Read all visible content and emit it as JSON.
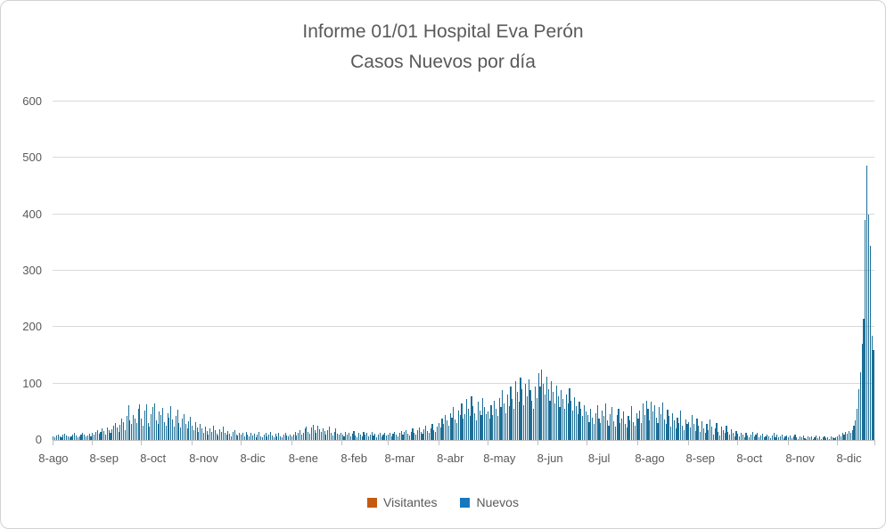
{
  "chart": {
    "title_line1": "Informe 01/01 Hospital Eva Perón",
    "title_line2": "Casos Nuevos por día",
    "legend": [
      {
        "label": "Visitantes",
        "color": "#c55a11"
      },
      {
        "label": "Nuevos",
        "color": "#1878be"
      }
    ],
    "colors": {
      "bar": "#1d6e96",
      "gridline": "#d9d9d9",
      "axis": "#bfbfbf",
      "text": "#595959",
      "frame_border": "#d2d2d2",
      "background": "#ffffff"
    }
  },
  "chart_data": {
    "type": "bar",
    "title": "Informe 01/01 Hospital Eva Perón — Casos Nuevos por día",
    "xlabel": "",
    "ylabel": "",
    "ylim": [
      0,
      600
    ],
    "yticks": [
      0,
      100,
      200,
      300,
      400,
      500,
      600
    ],
    "grid": true,
    "legend_position": "bottom",
    "x_unit": "day",
    "x_first_day": "8-ago (year 1)",
    "x_tick_labels": [
      "8-ago",
      "8-sep",
      "8-oct",
      "8-nov",
      "8-dic",
      "8-ene",
      "8-feb",
      "8-mar",
      "8-abr",
      "8-may",
      "8-jun",
      "8-jul",
      "8-ago",
      "8-sep",
      "8-oct",
      "8-nov",
      "8-dic"
    ],
    "x_tick_day_index": [
      0,
      31,
      61,
      92,
      122,
      153,
      184,
      212,
      243,
      273,
      304,
      334,
      365,
      396,
      426,
      457,
      487
    ],
    "month_start_day_index": [
      24,
      54,
      85,
      115,
      146,
      177,
      205,
      236,
      266,
      297,
      327,
      358,
      389,
      419,
      450,
      480
    ],
    "series": [
      {
        "name": "Visitantes",
        "color": "#c55a11",
        "values": []
      },
      {
        "name": "Nuevos",
        "color": "#1878be",
        "values": [
          6,
          4,
          8,
          10,
          7,
          5,
          9,
          11,
          8,
          6,
          4,
          7,
          9,
          12,
          8,
          5,
          7,
          10,
          13,
          9,
          6,
          8,
          11,
          7,
          12,
          9,
          15,
          18,
          11,
          14,
          20,
          16,
          10,
          22,
          17,
          13,
          19,
          25,
          30,
          22,
          15,
          27,
          38,
          32,
          18,
          42,
          62,
          35,
          28,
          45,
          38,
          30,
          55,
          63,
          38,
          25,
          52,
          63,
          30,
          24,
          46,
          58,
          65,
          35,
          28,
          50,
          44,
          57,
          32,
          26,
          48,
          40,
          60,
          36,
          24,
          42,
          53,
          30,
          22,
          38,
          46,
          28,
          20,
          33,
          41,
          26,
          18,
          32,
          22,
          14,
          28,
          20,
          12,
          24,
          16,
          10,
          21,
          15,
          26,
          18,
          11,
          8,
          19,
          14,
          23,
          12,
          9,
          16,
          11,
          7,
          14,
          18,
          10,
          8,
          13,
          9,
          12,
          7,
          15,
          10,
          6,
          13,
          8,
          11,
          5,
          9,
          14,
          7,
          4,
          10,
          12,
          6,
          9,
          15,
          8,
          5,
          11,
          7,
          13,
          6,
          4,
          9,
          12,
          8,
          6,
          10,
          7,
          10,
          14,
          8,
          12,
          17,
          9,
          13,
          20,
          24,
          15,
          11,
          22,
          27,
          18,
          13,
          25,
          19,
          14,
          21,
          16,
          10,
          18,
          23,
          12,
          8,
          15,
          20,
          11,
          9,
          13,
          10,
          7,
          14,
          9,
          12,
          6,
          11,
          16,
          8,
          5,
          13,
          10,
          7,
          15,
          9,
          12,
          6,
          10,
          14,
          8,
          11,
          5,
          9,
          13,
          7,
          10,
          12,
          8,
          9,
          13,
          7,
          11,
          15,
          10,
          6,
          12,
          16,
          9,
          14,
          18,
          11,
          8,
          15,
          20,
          13,
          10,
          17,
          22,
          14,
          11,
          19,
          25,
          16,
          13,
          21,
          28,
          18,
          15,
          24,
          30,
          22,
          38,
          28,
          45,
          35,
          26,
          48,
          40,
          58,
          36,
          30,
          52,
          44,
          65,
          38,
          46,
          73,
          55,
          42,
          78,
          60,
          48,
          35,
          68,
          52,
          44,
          75,
          58,
          46,
          50,
          38,
          62,
          45,
          70,
          55,
          42,
          75,
          58,
          88,
          65,
          48,
          80,
          60,
          95,
          72,
          55,
          105,
          85,
          68,
          110,
          90,
          62,
          100,
          78,
          108,
          88,
          70,
          56,
          95,
          75,
          118,
          95,
          125,
          100,
          80,
          112,
          90,
          70,
          105,
          85,
          64,
          96,
          78,
          58,
          88,
          72,
          55,
          80,
          65,
          92,
          70,
          52,
          76,
          60,
          46,
          68,
          55,
          42,
          62,
          50,
          45,
          32,
          55,
          40,
          28,
          48,
          62,
          38,
          30,
          52,
          42,
          65,
          35,
          26,
          46,
          58,
          33,
          24,
          44,
          55,
          30,
          38,
          50,
          28,
          22,
          42,
          35,
          60,
          32,
          25,
          47,
          38,
          52,
          30,
          65,
          45,
          70,
          55,
          35,
          68,
          50,
          62,
          40,
          30,
          58,
          46,
          66,
          36,
          28,
          54,
          42,
          24,
          48,
          35,
          20,
          40,
          30,
          52,
          26,
          18,
          36,
          28,
          32,
          22,
          44,
          28,
          16,
          38,
          25,
          14,
          33,
          20,
          12,
          28,
          18,
          36,
          24,
          10,
          20,
          30,
          15,
          8,
          24,
          17,
          12,
          26,
          14,
          9,
          19,
          13,
          7,
          16,
          11,
          7,
          13,
          9,
          5,
          12,
          8,
          4,
          10,
          14,
          6,
          9,
          12,
          5,
          8,
          11,
          4,
          7,
          10,
          6,
          3,
          8,
          12,
          5,
          9,
          4,
          7,
          10,
          3,
          6,
          8,
          5,
          8,
          3,
          6,
          9,
          4,
          2,
          7,
          5,
          8,
          3,
          1,
          6,
          4,
          7,
          2,
          5,
          8,
          3,
          6,
          2,
          4,
          7,
          3,
          5,
          2,
          6,
          4,
          3,
          5,
          7,
          10,
          6,
          12,
          9,
          14,
          11,
          16,
          13,
          18,
          25,
          35,
          55,
          90,
          120,
          170,
          215,
          390,
          487,
          400,
          345,
          185,
          160
        ]
      }
    ]
  }
}
